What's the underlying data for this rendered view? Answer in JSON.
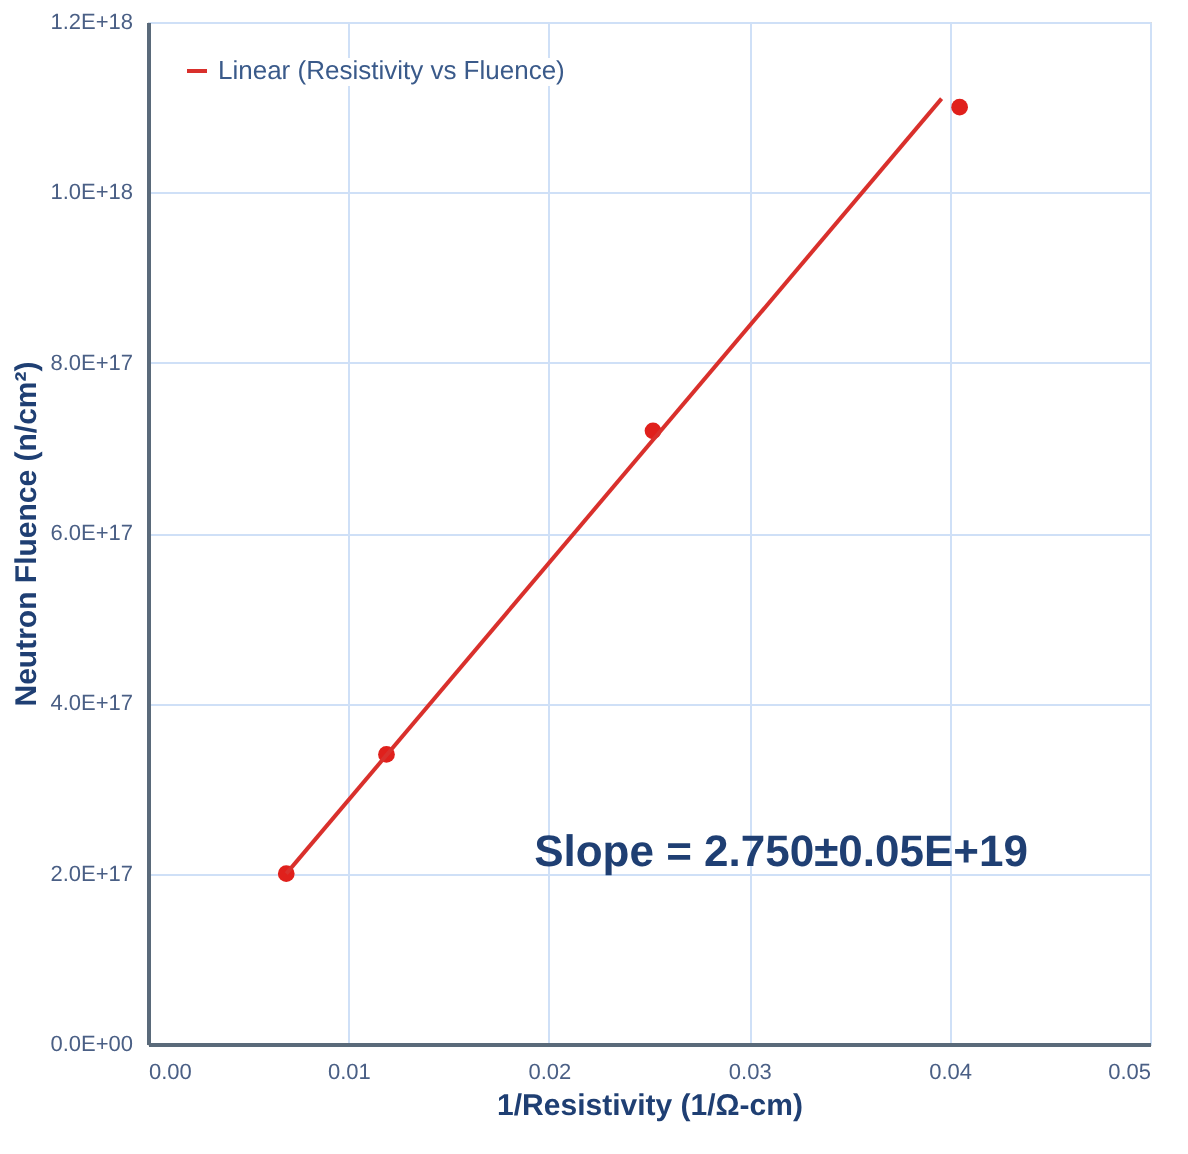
{
  "chart_data": {
    "type": "scatter",
    "xlabel": "1/Resistivity (1/Ω-cm)",
    "ylabel": "Neutron Fluence (n/cm²)",
    "annotations": [
      "Slope = 2.750±0.05E+19"
    ],
    "series": [
      {
        "color": "#e0201c",
        "marker": "circle",
        "x": [
          0.0069,
          0.0119,
          0.0252,
          0.0405
        ],
        "values": [
          2e+17,
          3.4e+17,
          7.2e+17,
          1.1e+18
        ]
      },
      {
        "type": "line",
        "name": "Linear (Resistivity vs Fluence)",
        "color": "#d9302c",
        "line_style": "solid",
        "x": [
          0.0069,
          0.0396
        ],
        "values": [
          2e+17,
          1.11e+18
        ]
      }
    ],
    "xlim": [
      0,
      0.05
    ],
    "xticks": [
      {
        "value": 0,
        "label": "0.00"
      },
      {
        "value": 0.01,
        "label": "0.01"
      },
      {
        "value": 0.02,
        "label": "0.02"
      },
      {
        "value": 0.03,
        "label": "0.03"
      },
      {
        "value": 0.04,
        "label": "0.04"
      },
      {
        "value": 0.05,
        "label": "0.05"
      }
    ],
    "ylim": [
      0,
      1.2e+18
    ],
    "yticks": [
      {
        "value": 0,
        "label": "0.0E+00"
      },
      {
        "value": 2e+17,
        "label": "2.0E+17"
      },
      {
        "value": 4e+17,
        "label": "4.0E+17"
      },
      {
        "value": 6e+17,
        "label": "6.0E+17"
      },
      {
        "value": 8e+17,
        "label": "8.0E+17"
      },
      {
        "value": 1e+18,
        "label": "1.0E+18"
      },
      {
        "value": 1.2e+18,
        "label": "1.2E+18"
      }
    ],
    "grid": true,
    "legend": "top left"
  }
}
